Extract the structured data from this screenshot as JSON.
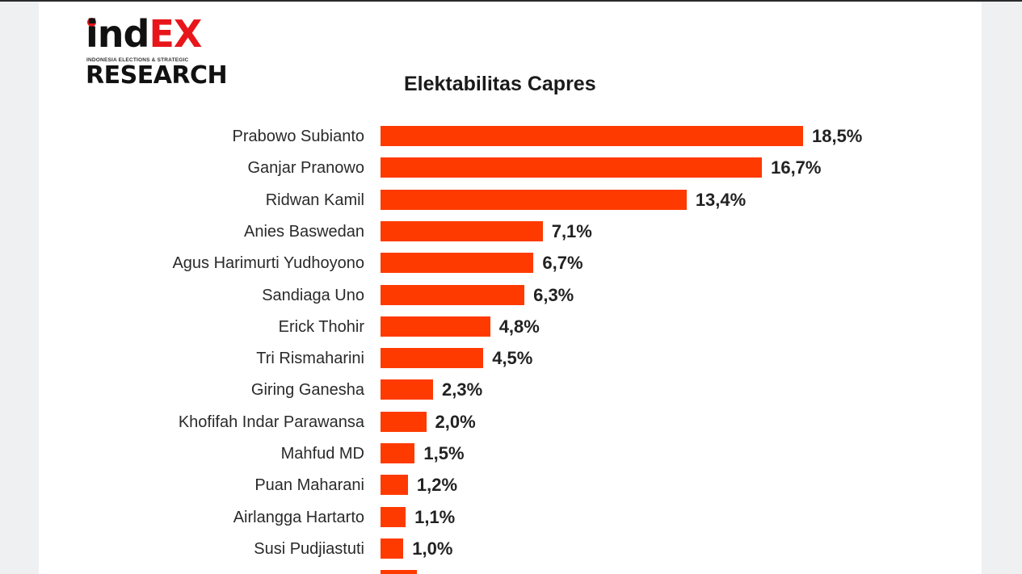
{
  "logo": {
    "brand_left": "ind",
    "brand_right": "EX",
    "tagline": "INDONESIA ELECTIONS & STRATEGIC",
    "research": "RESEARCH"
  },
  "colors": {
    "bar": "#ff3a00",
    "logo_red": "#e8161b",
    "text": "#222222"
  },
  "chart_data": {
    "type": "bar",
    "orientation": "horizontal",
    "title": "Elektabilitas Capres",
    "xlabel": "",
    "ylabel": "",
    "grid": false,
    "legend": "none",
    "unit": "%",
    "categories": [
      "Prabowo Subianto",
      "Ganjar Pranowo",
      "Ridwan Kamil",
      "Anies Baswedan",
      "Agus Harimurti Yudhoyono",
      "Sandiaga Uno",
      "Erick Thohir",
      "Tri Rismaharini",
      "Giring Ganesha",
      "Khofifah Indar Parawansa",
      "Mahfud MD",
      "Puan Maharani",
      "Airlangga Hartarto",
      "Susi Pudjiastuti",
      ""
    ],
    "values": [
      18.5,
      16.7,
      13.4,
      7.1,
      6.7,
      6.3,
      4.8,
      4.5,
      2.3,
      2.0,
      1.5,
      1.2,
      1.1,
      1.0,
      1.6
    ],
    "labels": [
      "18,5%",
      "16,7%",
      "13,4%",
      "7,1%",
      "6,7%",
      "6,3%",
      "4,8%",
      "4,5%",
      "2,3%",
      "2,0%",
      "1,5%",
      "1,2%",
      "1,1%",
      "1,0%",
      ""
    ],
    "notes": "Last row is cut off at bottom of viewport; its name and value label are not legible (bar ≈1.6%)."
  }
}
